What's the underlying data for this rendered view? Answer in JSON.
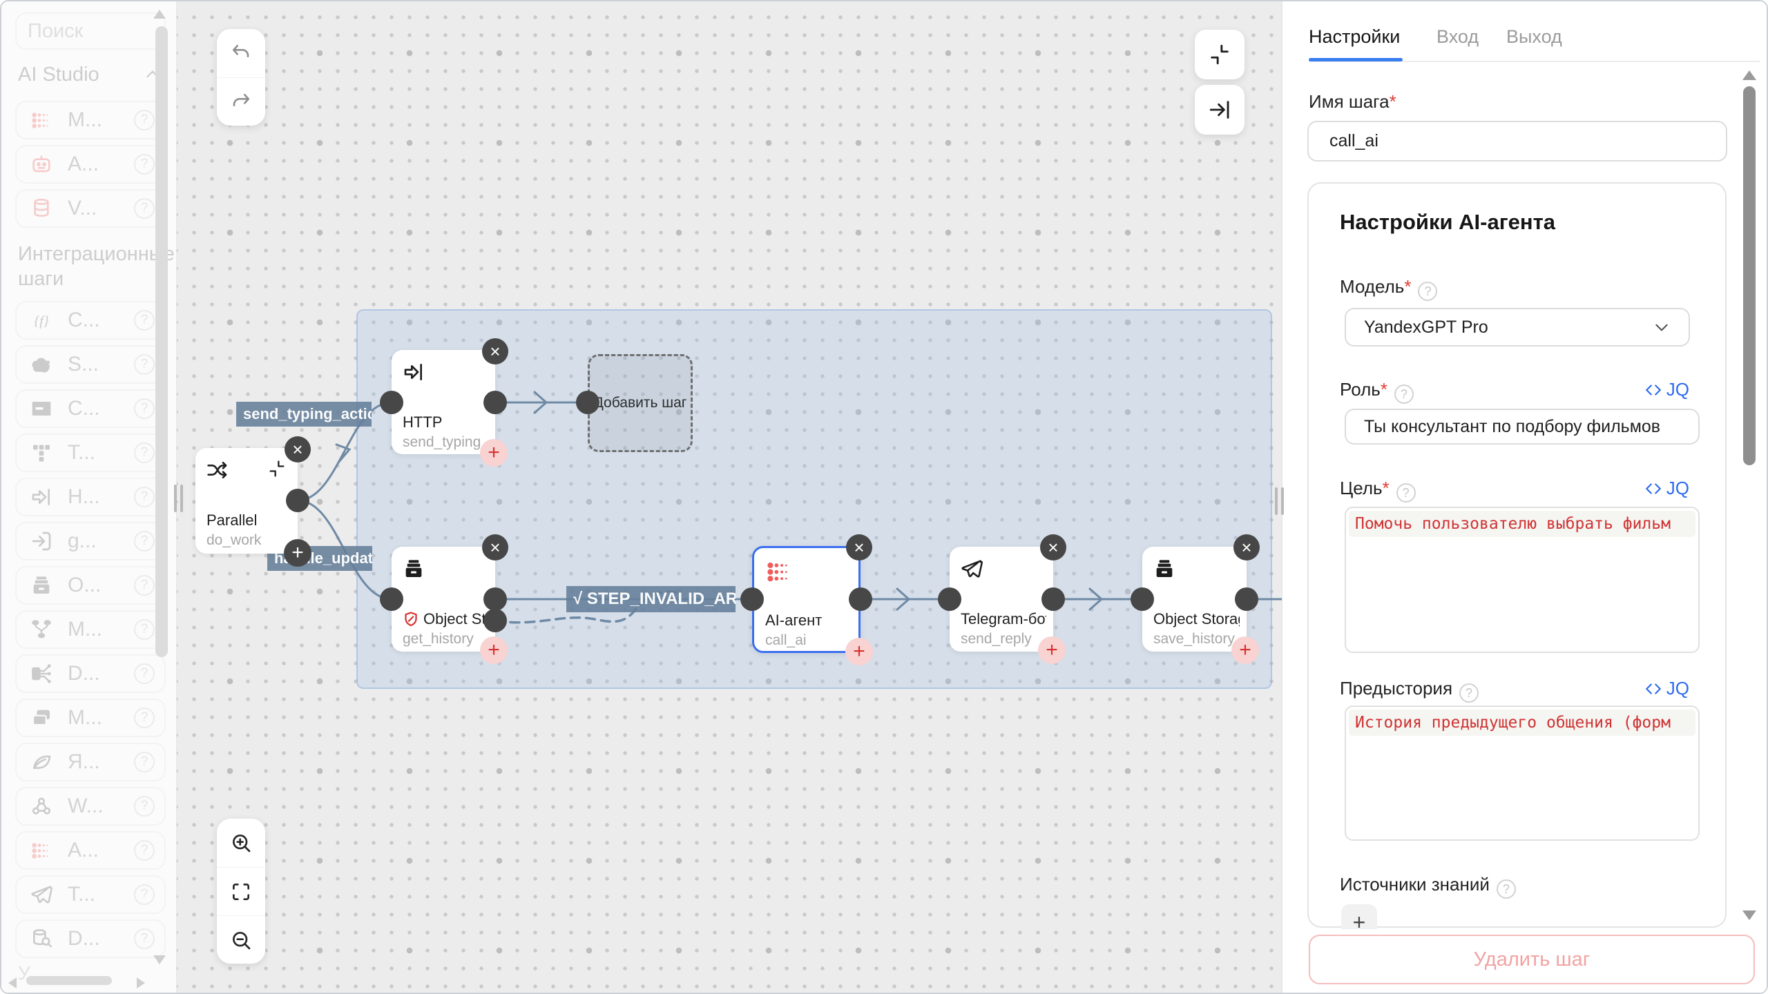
{
  "sidebar": {
    "search_placeholder": "Поиск",
    "ai_studio": {
      "label": "AI Studio",
      "items": [
        {
          "icon": "ai-dots",
          "label": "M...",
          "red": true
        },
        {
          "icon": "robot",
          "label": "A...",
          "red": true
        },
        {
          "icon": "database",
          "label": "V...",
          "red": true
        }
      ]
    },
    "integration": {
      "label": "Интеграционные шаги",
      "items": [
        {
          "icon": "function-braces",
          "label": "C..."
        },
        {
          "icon": "cloud-bars",
          "label": "S..."
        },
        {
          "icon": "mail",
          "label": "C..."
        },
        {
          "icon": "text-blocks",
          "label": "T..."
        },
        {
          "icon": "http-arrow",
          "label": "H..."
        },
        {
          "icon": "enter-arrow",
          "label": "g..."
        },
        {
          "icon": "archive-box",
          "label": "O..."
        },
        {
          "icon": "merge",
          "label": "M..."
        },
        {
          "icon": "split",
          "label": "D..."
        },
        {
          "icon": "copies",
          "label": "M..."
        },
        {
          "icon": "leaf",
          "label": "Я..."
        },
        {
          "icon": "webhook",
          "label": "W..."
        },
        {
          "icon": "ai-dots",
          "label": "A...",
          "red": true
        },
        {
          "icon": "paper-plane",
          "label": "T..."
        },
        {
          "icon": "db-search",
          "label": "D..."
        }
      ]
    },
    "partial_item_label": "У..."
  },
  "canvas": {
    "edge_labels": {
      "branch_top": "send_typing_action",
      "branch_bottom": "handle_update",
      "step_invalid": "√ STEP_INVALID_AR..."
    },
    "add_step_label": "Добавить шаг",
    "nodes": {
      "parallel": {
        "type": "Parallel",
        "name": "do_work"
      },
      "http": {
        "type": "HTTP",
        "name": "send_typing_acti..."
      },
      "get_history": {
        "type": "Object Storage",
        "name": "get_history"
      },
      "ai_agent": {
        "type": "AI-агент",
        "name": "call_ai"
      },
      "telegram": {
        "type": "Telegram-бот",
        "name": "send_reply"
      },
      "save_history": {
        "type": "Object Storage",
        "name": "save_history"
      }
    },
    "controls": {
      "top_left": [
        "undo",
        "redo"
      ],
      "top_right": [
        "collapse",
        "arrow-to-bar"
      ],
      "bottom_left": [
        "zoom-in",
        "fit-view",
        "zoom-out"
      ]
    }
  },
  "panel": {
    "tabs": [
      {
        "label": "Настройки",
        "active": true
      },
      {
        "label": "Вход",
        "active": false
      },
      {
        "label": "Выход",
        "active": false
      }
    ],
    "step_name": {
      "label": "Имя шага",
      "required_mark": "*",
      "value": "call_ai"
    },
    "agent": {
      "title": "Настройки AI-агента",
      "model": {
        "label": "Модель",
        "required_mark": "*",
        "value": "YandexGPT Pro"
      },
      "role": {
        "label": "Роль",
        "required_mark": "*",
        "jq_label": "JQ",
        "value": "Ты консультант по подбору фильмов"
      },
      "goal": {
        "label": "Цель",
        "required_mark": "*",
        "jq_label": "JQ",
        "code": "Помочь пользователю выбрать фильм"
      },
      "backstory": {
        "label": "Предыстория",
        "jq_label": "JQ",
        "code": "История предыдущего общения (форм"
      },
      "knowledge": {
        "label": "Источники знаний",
        "add_label": "+"
      }
    },
    "delete_button": "Удалить шаг"
  },
  "colors": {
    "accent": "#377df0",
    "danger": "#d6322e",
    "edge": "#6f8aa5",
    "edge_label_bg": "#64809b",
    "selection": "#a0bce2",
    "code_text": "#cf3434"
  }
}
